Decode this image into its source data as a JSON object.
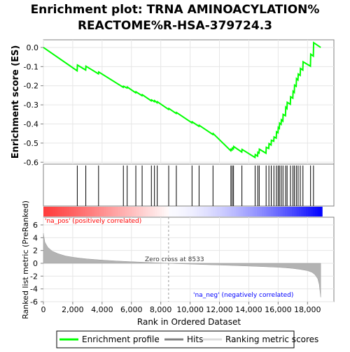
{
  "title_line1": "Enrichment plot: TRNA AMINOACYLATION%",
  "title_line2": "REACTOME%R-HSA-379724.3",
  "ylabel_es": "Enrichment score (ES)",
  "ylabel_rank": "Ranked list metric (PreRanked)",
  "xlabel": "Rank in Ordered Dataset",
  "na_pos_label": "'na_pos' (positively correlated)",
  "na_neg_label": "'na_neg' (negatively correlated)",
  "zero_cross_label": "Zero cross at 8533",
  "legend": {
    "profile": "Enrichment profile",
    "hits": "Hits",
    "metric": "Ranking metric scores"
  },
  "colors": {
    "profile": "#00ff00",
    "hits": "#000000",
    "metric_fill": "#b3b3b3",
    "pos_label": "#ff0000",
    "neg_label": "#0000ff"
  },
  "chart_data": [
    {
      "type": "line",
      "name": "Enrichment profile",
      "x_ticks": [
        0,
        2000,
        4000,
        6000,
        8000,
        10000,
        12000,
        14000,
        16000,
        18000
      ],
      "y_ticks": [
        "0.0",
        "-0.1",
        "-0.2",
        "-0.3",
        "-0.4",
        "-0.5",
        "-0.6"
      ],
      "xlim": [
        0,
        19800
      ],
      "ylim": [
        -0.61,
        0.04
      ],
      "x": [
        0,
        2300,
        2320,
        2880,
        2900,
        3750,
        3770,
        5440,
        5460,
        5700,
        5720,
        6290,
        6310,
        6720,
        6740,
        7350,
        7370,
        7560,
        7580,
        7750,
        7770,
        8530,
        8550,
        9050,
        9070,
        10120,
        10140,
        10600,
        10620,
        11550,
        11570,
        12770,
        12790,
        12860,
        12880,
        12950,
        12970,
        13520,
        13540,
        14420,
        14440,
        14600,
        14620,
        14700,
        14720,
        15170,
        15190,
        15360,
        15380,
        15520,
        15540,
        15700,
        15720,
        15870,
        15890,
        15990,
        16010,
        16080,
        16100,
        16200,
        16220,
        16320,
        16340,
        16500,
        16520,
        16600,
        16620,
        16830,
        16850,
        17000,
        17020,
        17100,
        17120,
        17230,
        17250,
        17350,
        17370,
        17500,
        17520,
        17680,
        17700,
        18200,
        18220,
        18400,
        18420,
        18900
      ],
      "y": [
        0.0,
        -0.122,
        -0.092,
        -0.118,
        -0.098,
        -0.138,
        -0.128,
        -0.208,
        -0.203,
        -0.212,
        -0.207,
        -0.237,
        -0.232,
        -0.252,
        -0.247,
        -0.279,
        -0.274,
        -0.283,
        -0.278,
        -0.289,
        -0.284,
        -0.324,
        -0.319,
        -0.345,
        -0.34,
        -0.394,
        -0.389,
        -0.412,
        -0.407,
        -0.455,
        -0.45,
        -0.54,
        -0.532,
        -0.536,
        -0.526,
        -0.53,
        -0.518,
        -0.547,
        -0.533,
        -0.575,
        -0.56,
        -0.568,
        -0.548,
        -0.552,
        -0.532,
        -0.553,
        -0.522,
        -0.528,
        -0.503,
        -0.51,
        -0.485,
        -0.49,
        -0.468,
        -0.474,
        -0.441,
        -0.446,
        -0.418,
        -0.423,
        -0.396,
        -0.402,
        -0.378,
        -0.385,
        -0.35,
        -0.357,
        -0.312,
        -0.319,
        -0.287,
        -0.297,
        -0.258,
        -0.265,
        -0.229,
        -0.235,
        -0.197,
        -0.203,
        -0.163,
        -0.17,
        -0.139,
        -0.146,
        -0.11,
        -0.118,
        -0.075,
        -0.098,
        -0.035,
        -0.045,
        0.025,
        0.0
      ]
    },
    {
      "type": "scatter",
      "name": "Hits",
      "x": [
        2310,
        2890,
        3760,
        5450,
        5710,
        6300,
        6730,
        7360,
        7570,
        7760,
        8540,
        9060,
        10130,
        10610,
        11560,
        12780,
        12870,
        12960,
        13530,
        14430,
        14610,
        14710,
        15180,
        15370,
        15530,
        15710,
        15880,
        16000,
        16090,
        16210,
        16330,
        16510,
        16610,
        16840,
        17010,
        17110,
        17240,
        17360,
        17510,
        17690,
        18210,
        18410
      ]
    },
    {
      "type": "area",
      "name": "Ranking metric scores",
      "x": [
        0,
        100,
        300,
        600,
        1000,
        1500,
        2000,
        2500,
        3000,
        4000,
        5000,
        6000,
        7000,
        8000,
        8533,
        9000,
        10000,
        11000,
        12000,
        13000,
        14000,
        15000,
        16000,
        16500,
        17000,
        17500,
        18000,
        18300,
        18500,
        18700,
        18800,
        18900
      ],
      "y": [
        4.7,
        3.3,
        2.5,
        1.9,
        1.5,
        1.15,
        0.95,
        0.8,
        0.68,
        0.5,
        0.36,
        0.25,
        0.15,
        0.05,
        0.0,
        -0.05,
        -0.12,
        -0.2,
        -0.27,
        -0.35,
        -0.43,
        -0.52,
        -0.62,
        -0.7,
        -0.8,
        -0.95,
        -1.15,
        -1.4,
        -1.75,
        -2.4,
        -3.3,
        -5.3
      ],
      "y_ticks": [
        "6",
        "4",
        "2",
        "0",
        "-2",
        "-4",
        "-6"
      ],
      "ylim": [
        -6,
        7.2
      ],
      "zero_cross": 8533
    }
  ]
}
